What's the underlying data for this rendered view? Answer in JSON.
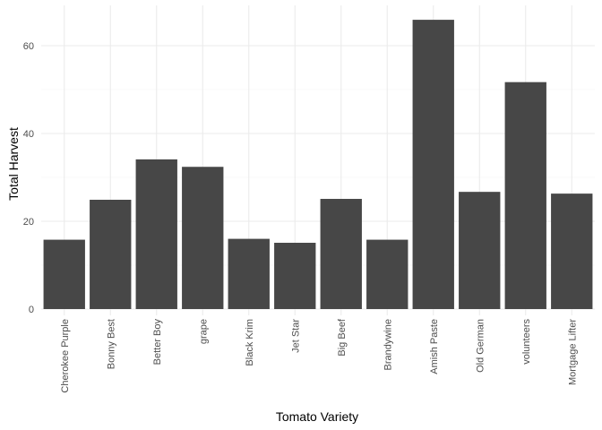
{
  "chart_data": {
    "type": "bar",
    "title": "",
    "xlabel": "Tomato Variety",
    "ylabel": "Total Harvest",
    "categories": [
      "Cherokee Purple",
      "Bonny Best",
      "Better Boy",
      "grape",
      "Black Krim",
      "Jet Star",
      "Big Beef",
      "Brandywine",
      "Amish Paste",
      "Old German",
      "volunteers",
      "Mortgage Lifter"
    ],
    "values": [
      15.8,
      24.9,
      34.1,
      32.4,
      16.0,
      15.1,
      25.1,
      15.8,
      65.9,
      26.7,
      51.7,
      26.3
    ],
    "ylim": [
      0,
      66
    ],
    "yticks": [
      0,
      20,
      40,
      60
    ],
    "grid": true,
    "bar_color": "#474747",
    "grid_color": "#ebebeb"
  }
}
